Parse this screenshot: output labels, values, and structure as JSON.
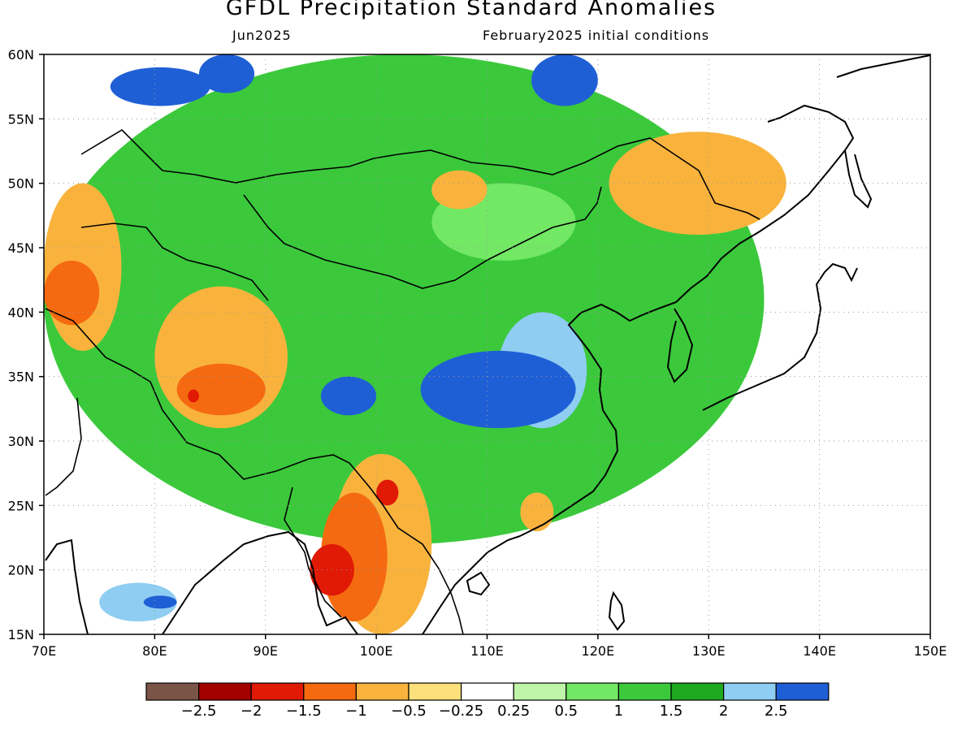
{
  "title": "GFDL Precipitation Standard Anomalies",
  "subtitle_left": "Jun2025",
  "subtitle_right": "February2025 initial conditions",
  "map": {
    "lon_range": [
      70,
      150
    ],
    "lat_range": [
      15,
      60
    ],
    "lon_ticks": [
      "70E",
      "80E",
      "90E",
      "100E",
      "110E",
      "120E",
      "130E",
      "140E",
      "150E"
    ],
    "lat_ticks": [
      "15N",
      "20N",
      "25N",
      "30N",
      "35N",
      "40N",
      "45N",
      "50N",
      "55N",
      "60N"
    ],
    "gridlines": "dotted"
  },
  "colorbar": {
    "colors": [
      "#7a5547",
      "#a30000",
      "#e01a05",
      "#f56a10",
      "#f9b33d",
      "#fde07a",
      "#ffffff",
      "#bff5a9",
      "#72e865",
      "#3bc93b",
      "#1fa91f",
      "#8fcdf2",
      "#1f5fd6"
    ],
    "labels": [
      "−2.5",
      "−2",
      "−1.5",
      "−1",
      "−0.5",
      "−0.25",
      "0.25",
      "0.5",
      "1",
      "1.5",
      "2",
      "2.5"
    ]
  },
  "anomaly_regions": [
    {
      "category": "green",
      "color": "#3bc93b",
      "lon": [
        70,
        135
      ],
      "lat": [
        22,
        60
      ]
    },
    {
      "category": "light-green",
      "color": "#72e865",
      "lon": [
        105,
        118
      ],
      "lat": [
        44,
        50
      ]
    },
    {
      "category": "blue",
      "color": "#1f5fd6",
      "lon": [
        76,
        85
      ],
      "lat": [
        56,
        59
      ]
    },
    {
      "category": "blue",
      "color": "#1f5fd6",
      "lon": [
        84,
        89
      ],
      "lat": [
        57,
        60
      ]
    },
    {
      "category": "blue",
      "color": "#1f5fd6",
      "lon": [
        114,
        120
      ],
      "lat": [
        56,
        60
      ]
    },
    {
      "category": "light-blue",
      "color": "#8fcdf2",
      "lon": [
        111,
        119
      ],
      "lat": [
        31,
        40
      ]
    },
    {
      "category": "blue",
      "color": "#1f5fd6",
      "lon": [
        104,
        118
      ],
      "lat": [
        31,
        37
      ]
    },
    {
      "category": "blue",
      "color": "#1f5fd6",
      "lon": [
        95,
        100
      ],
      "lat": [
        32,
        35
      ]
    },
    {
      "category": "light-blue",
      "color": "#8fcdf2",
      "lon": [
        75,
        82
      ],
      "lat": [
        16,
        19
      ]
    },
    {
      "category": "blue",
      "color": "#1f5fd6",
      "lon": [
        79,
        82
      ],
      "lat": [
        17,
        18
      ]
    },
    {
      "category": "orange-pale",
      "color": "#f9b33d",
      "lon": [
        70,
        77
      ],
      "lat": [
        37,
        50
      ]
    },
    {
      "category": "orange-pale",
      "color": "#f9b33d",
      "lon": [
        80,
        92
      ],
      "lat": [
        31,
        42
      ]
    },
    {
      "category": "orange",
      "color": "#f56a10",
      "lon": [
        82,
        90
      ],
      "lat": [
        32,
        36
      ]
    },
    {
      "category": "red",
      "color": "#e01a05",
      "lon": [
        83,
        84
      ],
      "lat": [
        33,
        34
      ]
    },
    {
      "category": "orange",
      "color": "#f56a10",
      "lon": [
        70,
        75
      ],
      "lat": [
        39,
        44
      ]
    },
    {
      "category": "orange-pale",
      "color": "#f9b33d",
      "lon": [
        96,
        105
      ],
      "lat": [
        15,
        29
      ]
    },
    {
      "category": "orange",
      "color": "#f56a10",
      "lon": [
        95,
        101
      ],
      "lat": [
        16,
        26
      ]
    },
    {
      "category": "red",
      "color": "#e01a05",
      "lon": [
        94,
        98
      ],
      "lat": [
        18,
        22
      ]
    },
    {
      "category": "red",
      "color": "#e01a05",
      "lon": [
        100,
        102
      ],
      "lat": [
        25,
        27
      ]
    },
    {
      "category": "orange-pale",
      "color": "#f9b33d",
      "lon": [
        121,
        137
      ],
      "lat": [
        46,
        54
      ]
    },
    {
      "category": "orange-pale",
      "color": "#f9b33d",
      "lon": [
        105,
        110
      ],
      "lat": [
        48,
        51
      ]
    },
    {
      "category": "orange-pale",
      "color": "#f9b33d",
      "lon": [
        113,
        116
      ],
      "lat": [
        23,
        26
      ]
    }
  ]
}
